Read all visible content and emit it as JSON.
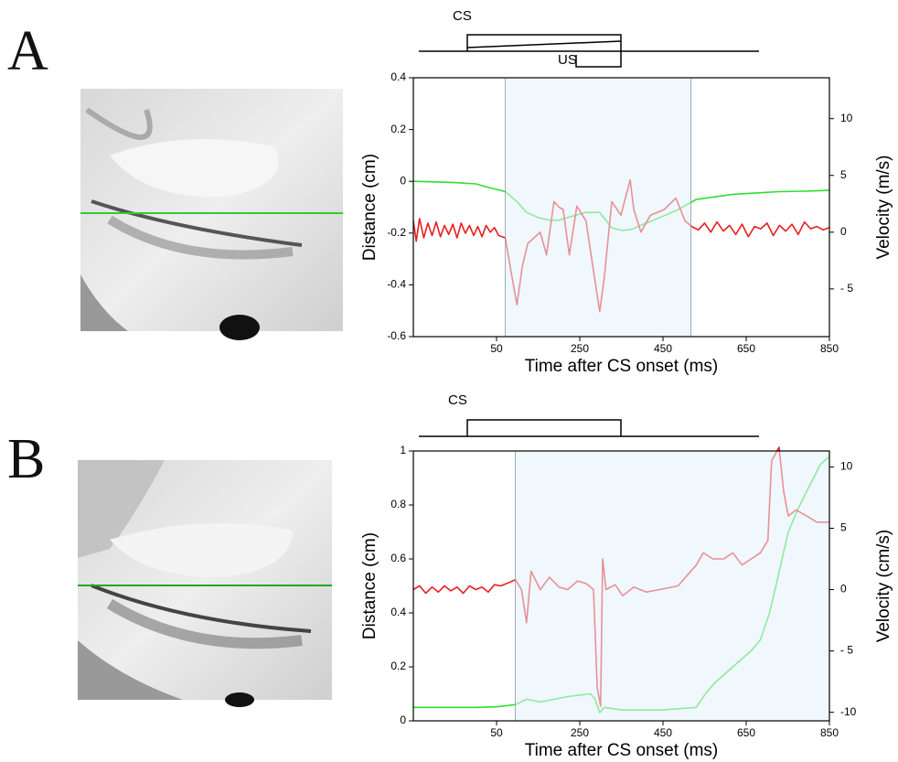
{
  "chart_data": [
    {
      "type": "line",
      "panel_label": "A",
      "stimulus_labels": [
        "CS",
        "US"
      ],
      "xlabel": "Time after CS onset (ms)",
      "ylabel": "Distance (cm)",
      "y2label": "Velocity (m/s)",
      "xlim": [
        -150,
        850
      ],
      "xticks": [
        50,
        250,
        450,
        650,
        850
      ],
      "ylim": [
        -0.6,
        0.4
      ],
      "yticks": [
        0.4,
        0.2,
        0,
        -0.2,
        -0.4,
        -0.6
      ],
      "y2lim": [
        -9.2,
        13.6
      ],
      "y2ticks": [
        10,
        5,
        0,
        {
          "value": -5,
          "label": "- 5"
        }
      ],
      "shaded_span": [
        71,
        517
      ],
      "shade_color": "#e3f1fb",
      "series": [
        {
          "color": "#2ee02e",
          "axis": "y",
          "x": [
            -150,
            -100,
            -50,
            0,
            22,
            71,
            100,
            122,
            150,
            177,
            200,
            221,
            243,
            265,
            298,
            327,
            353,
            375,
            397,
            420,
            442,
            486,
            530,
            575,
            618,
            675,
            729,
            790,
            850
          ],
          "values": [
            0,
            -0.002,
            -0.005,
            -0.01,
            -0.02,
            -0.04,
            -0.08,
            -0.12,
            -0.14,
            -0.15,
            -0.15,
            -0.14,
            -0.13,
            -0.12,
            -0.12,
            -0.18,
            -0.19,
            -0.185,
            -0.17,
            -0.155,
            -0.14,
            -0.11,
            -0.07,
            -0.06,
            -0.05,
            -0.045,
            -0.04,
            -0.038,
            -0.035
          ]
        },
        {
          "color": "#e8201e",
          "axis": "y2",
          "x": [
            -150,
            -143,
            -135,
            -125,
            -115,
            -105,
            -95,
            -85,
            -75,
            -65,
            -55,
            -45,
            -35,
            -25,
            -15,
            -5,
            5,
            15,
            25,
            35,
            45,
            55,
            71,
            85,
            99,
            112,
            125,
            140,
            155,
            170,
            188,
            200,
            210,
            225,
            243,
            265,
            283,
            298,
            309,
            327,
            349,
            371,
            380,
            397,
            420,
            453,
            481,
            503,
            519,
            535,
            550,
            565,
            580,
            595,
            610,
            625,
            640,
            655,
            670,
            685,
            700,
            715,
            730,
            745,
            760,
            775,
            790,
            805,
            820,
            835,
            850
          ],
          "values": [
            1,
            -0.8,
            1.2,
            -0.5,
            0.8,
            -0.3,
            0.9,
            -0.4,
            0.6,
            -0.2,
            0.7,
            -0.5,
            0.8,
            -0.1,
            0.6,
            -0.3,
            0.5,
            -0.4,
            0.6,
            0,
            0.4,
            -0.3,
            -0.5,
            -3.5,
            -6.4,
            -3,
            -1,
            -0.5,
            0,
            -2,
            2.7,
            2.2,
            2,
            -2,
            2.3,
            1,
            -3.4,
            -7,
            -4,
            2.7,
            1.5,
            4.6,
            2,
            0,
            1.5,
            2,
            3,
            1,
            0.5,
            0.2,
            0.8,
            0,
            0.9,
            0.1,
            0.6,
            -0.2,
            0.7,
            -0.4,
            0.5,
            0.3,
            0.8,
            -0.3,
            0.6,
            0.1,
            0.7,
            -0.2,
            0.9,
            0.3,
            0.5,
            0.2,
            0.4
          ]
        }
      ]
    },
    {
      "type": "line",
      "panel_label": "B",
      "stimulus_labels": [
        "CS"
      ],
      "xlabel": "Time after CS onset (ms)",
      "ylabel": "Distance (cm)",
      "y2label": "Velocity (cm/s)",
      "xlim": [
        -150,
        850
      ],
      "xticks": [
        50,
        250,
        450,
        650,
        850
      ],
      "ylim": [
        0,
        1
      ],
      "yticks": [
        1,
        0.8,
        0.6,
        0.4,
        0.2,
        0
      ],
      "y2lim": [
        -10.7,
        11.3
      ],
      "y2ticks": [
        10,
        5,
        0,
        {
          "value": -5,
          "label": "- 5"
        },
        -10
      ],
      "shaded_span": [
        95,
        850
      ],
      "shade_color": "#e3f1fb",
      "series": [
        {
          "color": "#2ee02e",
          "axis": "y",
          "x": [
            -150,
            -100,
            -50,
            0,
            50,
            95,
            122,
            155,
            221,
            276,
            287,
            298,
            309,
            353,
            400,
            442,
            490,
            530,
            552,
            574,
            596,
            618,
            640,
            662,
            684,
            706,
            729,
            751,
            773,
            795,
            812,
            828,
            850
          ],
          "values": [
            0.05,
            0.05,
            0.05,
            0.05,
            0.052,
            0.06,
            0.08,
            0.07,
            0.09,
            0.1,
            0.08,
            0.03,
            0.05,
            0.04,
            0.04,
            0.04,
            0.045,
            0.05,
            0.1,
            0.14,
            0.17,
            0.2,
            0.23,
            0.26,
            0.3,
            0.4,
            0.55,
            0.7,
            0.78,
            0.85,
            0.9,
            0.95,
            0.98
          ]
        },
        {
          "color": "#e8201e",
          "axis": "y2",
          "x": [
            -150,
            -135,
            -120,
            -105,
            -90,
            -75,
            -60,
            -45,
            -30,
            -15,
            0,
            15,
            30,
            45,
            60,
            75,
            95,
            110,
            122,
            133,
            155,
            177,
            200,
            221,
            245,
            265,
            283,
            292,
            300,
            305,
            313,
            335,
            353,
            380,
            410,
            442,
            486,
            530,
            547,
            570,
            596,
            618,
            640,
            662,
            684,
            702,
            711,
            729,
            740,
            751,
            770,
            795,
            820,
            850
          ],
          "values": [
            0,
            0.3,
            -0.3,
            0.2,
            -0.2,
            0.3,
            -0.1,
            0.2,
            -0.3,
            0.3,
            0,
            0.2,
            -0.2,
            0.4,
            0.3,
            0.5,
            0.8,
            0,
            -2.7,
            1.5,
            0,
            1,
            0.2,
            0,
            0.7,
            0.5,
            0,
            -8,
            -9.5,
            2.5,
            0,
            0.4,
            -0.5,
            0.2,
            -0.2,
            0,
            0.3,
            2,
            3,
            2.5,
            2.5,
            3,
            2,
            2.5,
            3,
            4,
            10.5,
            11.6,
            8,
            6,
            6.5,
            6,
            5.5,
            5.5
          ]
        }
      ]
    }
  ]
}
